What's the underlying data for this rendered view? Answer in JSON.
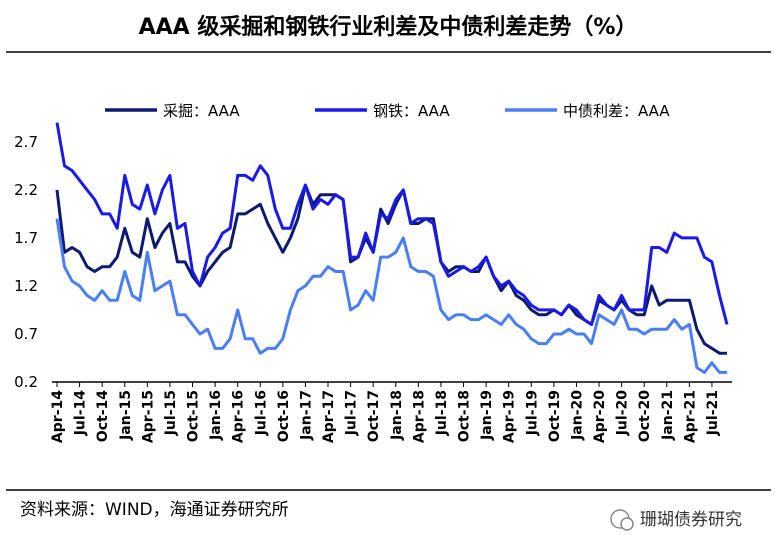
{
  "chart_data": {
    "type": "line",
    "title": "AAA 级采掘和钢铁行业利差及中债利差走势（%）",
    "source": "资料来源：WIND，海通证券研究所",
    "watermark": "珊瑚债券研究",
    "categories": [
      "Apr-14",
      null,
      null,
      "Jul-14",
      null,
      null,
      "Oct-14",
      null,
      null,
      "Jan-15",
      null,
      null,
      "Apr-15",
      null,
      null,
      "Jul-15",
      null,
      null,
      "Oct-15",
      null,
      null,
      "Jan-16",
      null,
      null,
      "Apr-16",
      null,
      null,
      "Jul-16",
      null,
      null,
      "Oct-16",
      null,
      null,
      "Jan-17",
      null,
      null,
      "Apr-17",
      null,
      null,
      "Jul-17",
      null,
      null,
      "Oct-17",
      null,
      null,
      "Jan-18",
      null,
      null,
      "Apr-18",
      null,
      null,
      "Jul-18",
      null,
      null,
      "Oct-18",
      null,
      null,
      "Jan-19",
      null,
      null,
      "Apr-19",
      null,
      null,
      "Jul-19",
      null,
      null,
      "Oct-19",
      null,
      null,
      "Jan-20",
      null,
      null,
      "Apr-20",
      null,
      null,
      "Jul-20",
      null,
      null,
      "Oct-20",
      null,
      null,
      "Jan-21",
      null,
      null,
      "Apr-21",
      null,
      null,
      "Jul-21",
      null,
      null
    ],
    "series": [
      {
        "name": "采掘：AAA",
        "color": "#0d1a6e",
        "values": [
          2.2,
          1.55,
          1.6,
          1.55,
          1.4,
          1.35,
          1.4,
          1.4,
          1.5,
          1.8,
          1.55,
          1.5,
          1.9,
          1.6,
          1.75,
          1.85,
          1.45,
          1.45,
          1.3,
          1.2,
          1.35,
          1.45,
          1.55,
          1.6,
          1.95,
          1.95,
          2.0,
          2.05,
          1.85,
          1.7,
          1.55,
          1.7,
          1.9,
          2.25,
          2.05,
          2.15,
          2.15,
          2.15,
          2.1,
          1.45,
          1.5,
          1.7,
          1.55,
          2.0,
          1.85,
          2.05,
          2.2,
          1.85,
          1.85,
          1.9,
          1.9,
          1.45,
          1.35,
          1.4,
          1.4,
          1.35,
          1.35,
          1.5,
          1.3,
          1.15,
          1.25,
          1.1,
          1.05,
          0.95,
          0.9,
          0.9,
          0.95,
          0.9,
          1.0,
          0.9,
          0.85,
          0.8,
          1.05,
          1.0,
          0.95,
          1.05,
          0.95,
          0.9,
          0.9,
          1.2,
          1.0,
          1.05,
          1.05,
          1.05,
          1.05,
          0.75,
          0.6,
          0.55,
          0.5,
          0.5
        ]
      },
      {
        "name": "钢铁：AAA",
        "color": "#1a1ae6",
        "values": [
          2.9,
          2.45,
          2.4,
          2.3,
          2.2,
          2.1,
          1.95,
          1.95,
          1.8,
          2.35,
          2.05,
          2.0,
          2.25,
          1.95,
          2.2,
          2.35,
          1.8,
          1.85,
          1.35,
          1.2,
          1.5,
          1.6,
          1.75,
          1.8,
          2.35,
          2.35,
          2.3,
          2.45,
          2.35,
          2.0,
          1.8,
          1.8,
          2.05,
          2.25,
          2.0,
          2.1,
          2.05,
          2.15,
          2.1,
          1.5,
          1.5,
          1.75,
          1.55,
          1.95,
          1.9,
          2.1,
          2.2,
          1.85,
          1.9,
          1.9,
          1.85,
          1.45,
          1.3,
          1.35,
          1.4,
          1.35,
          1.4,
          1.5,
          1.3,
          1.2,
          1.25,
          1.15,
          1.1,
          1.0,
          0.95,
          0.95,
          0.95,
          0.9,
          1.0,
          0.95,
          0.85,
          0.8,
          1.1,
          1.0,
          0.95,
          1.1,
          0.95,
          0.95,
          0.95,
          1.6,
          1.6,
          1.55,
          1.75,
          1.7,
          1.7,
          1.7,
          1.5,
          1.45,
          1.1,
          0.8
        ]
      },
      {
        "name": "中债利差：AAA",
        "color": "#4a7ef5",
        "values": [
          1.9,
          1.4,
          1.25,
          1.2,
          1.1,
          1.05,
          1.15,
          1.05,
          1.05,
          1.35,
          1.1,
          1.05,
          1.55,
          1.15,
          1.2,
          1.25,
          0.9,
          0.9,
          0.8,
          0.7,
          0.75,
          0.55,
          0.55,
          0.65,
          0.95,
          0.65,
          0.65,
          0.5,
          0.55,
          0.55,
          0.65,
          0.95,
          1.15,
          1.2,
          1.3,
          1.3,
          1.4,
          1.35,
          1.35,
          0.95,
          1.0,
          1.15,
          1.05,
          1.5,
          1.5,
          1.55,
          1.7,
          1.4,
          1.35,
          1.35,
          1.3,
          0.95,
          0.85,
          0.9,
          0.9,
          0.85,
          0.85,
          0.9,
          0.85,
          0.8,
          0.9,
          0.8,
          0.75,
          0.65,
          0.6,
          0.6,
          0.7,
          0.7,
          0.75,
          0.7,
          0.7,
          0.6,
          0.9,
          0.85,
          0.8,
          0.95,
          0.75,
          0.75,
          0.7,
          0.75,
          0.75,
          0.75,
          0.85,
          0.75,
          0.8,
          0.35,
          0.3,
          0.4,
          0.3,
          0.3
        ]
      }
    ],
    "ylim": [
      0.2,
      3.0
    ],
    "yticks": [
      0.2,
      0.7,
      1.2,
      1.7,
      2.2,
      2.7
    ]
  }
}
